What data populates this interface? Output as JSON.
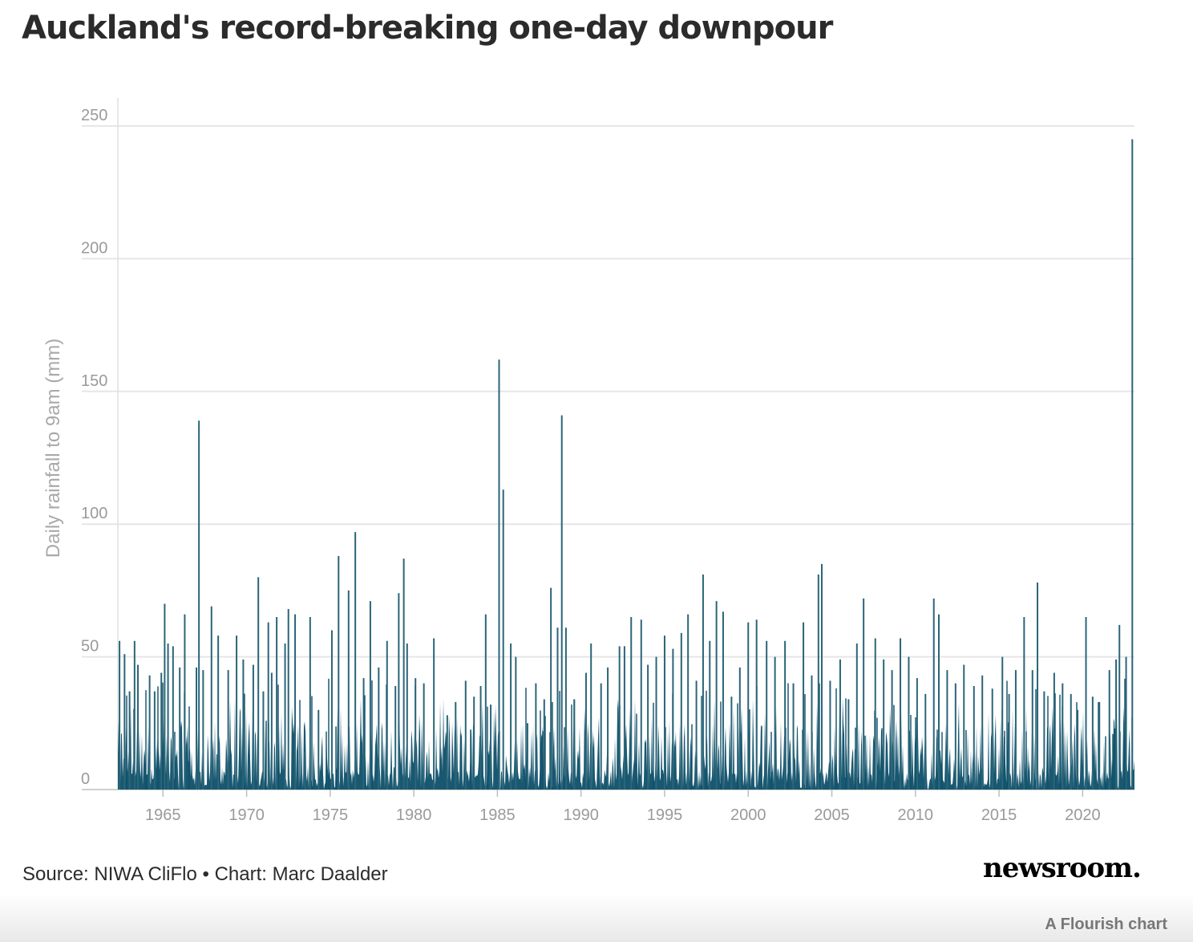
{
  "title": "Auckland's record-breaking one-day downpour",
  "source_text": "Source: NIWA CliFlo • Chart: Marc Daalder",
  "brand": "newsroom.",
  "credit": "A Flourish chart",
  "chart_data": {
    "type": "area",
    "ylabel": "Daily rainfall to 9am (mm)",
    "xlabel": "",
    "xlim": [
      1962.3,
      2023.1
    ],
    "ylim": [
      0,
      250
    ],
    "y_ticks": [
      "0",
      "50",
      "100",
      "150",
      "200",
      "250"
    ],
    "x_ticks": [
      "1965",
      "1970",
      "1975",
      "1980",
      "1985",
      "1990",
      "1995",
      "2000",
      "2005",
      "2010",
      "2015",
      "2020"
    ],
    "grid": true,
    "color": "#0d4f69",
    "peaks": [
      {
        "x": 1962.4,
        "y": 56
      },
      {
        "x": 1962.7,
        "y": 51
      },
      {
        "x": 1963.0,
        "y": 37
      },
      {
        "x": 1963.3,
        "y": 56
      },
      {
        "x": 1963.5,
        "y": 47
      },
      {
        "x": 1964.2,
        "y": 43
      },
      {
        "x": 1964.5,
        "y": 37
      },
      {
        "x": 1964.9,
        "y": 44
      },
      {
        "x": 1965.1,
        "y": 70
      },
      {
        "x": 1965.3,
        "y": 55
      },
      {
        "x": 1965.6,
        "y": 54
      },
      {
        "x": 1966.0,
        "y": 46
      },
      {
        "x": 1966.3,
        "y": 66
      },
      {
        "x": 1967.0,
        "y": 46
      },
      {
        "x": 1967.15,
        "y": 139
      },
      {
        "x": 1967.4,
        "y": 45
      },
      {
        "x": 1967.9,
        "y": 69
      },
      {
        "x": 1968.3,
        "y": 58
      },
      {
        "x": 1968.9,
        "y": 45
      },
      {
        "x": 1969.4,
        "y": 58
      },
      {
        "x": 1969.8,
        "y": 49
      },
      {
        "x": 1970.4,
        "y": 47
      },
      {
        "x": 1970.7,
        "y": 80
      },
      {
        "x": 1971.0,
        "y": 37
      },
      {
        "x": 1971.3,
        "y": 63
      },
      {
        "x": 1971.5,
        "y": 44
      },
      {
        "x": 1971.8,
        "y": 65
      },
      {
        "x": 1972.3,
        "y": 55
      },
      {
        "x": 1972.5,
        "y": 68
      },
      {
        "x": 1972.9,
        "y": 66
      },
      {
        "x": 1973.5,
        "y": 14
      },
      {
        "x": 1973.8,
        "y": 65
      },
      {
        "x": 1974.3,
        "y": 30
      },
      {
        "x": 1975.1,
        "y": 60
      },
      {
        "x": 1975.5,
        "y": 88
      },
      {
        "x": 1976.1,
        "y": 75
      },
      {
        "x": 1976.5,
        "y": 97
      },
      {
        "x": 1977.0,
        "y": 42
      },
      {
        "x": 1977.4,
        "y": 71
      },
      {
        "x": 1977.9,
        "y": 46
      },
      {
        "x": 1978.4,
        "y": 56
      },
      {
        "x": 1978.9,
        "y": 39
      },
      {
        "x": 1979.1,
        "y": 74
      },
      {
        "x": 1979.4,
        "y": 87
      },
      {
        "x": 1979.6,
        "y": 55
      },
      {
        "x": 1980.1,
        "y": 42
      },
      {
        "x": 1980.6,
        "y": 40
      },
      {
        "x": 1981.2,
        "y": 57
      },
      {
        "x": 1982.0,
        "y": 28
      },
      {
        "x": 1982.5,
        "y": 33
      },
      {
        "x": 1983.1,
        "y": 41
      },
      {
        "x": 1983.6,
        "y": 35
      },
      {
        "x": 1984.0,
        "y": 39
      },
      {
        "x": 1984.3,
        "y": 66
      },
      {
        "x": 1984.6,
        "y": 32
      },
      {
        "x": 1985.1,
        "y": 162
      },
      {
        "x": 1985.35,
        "y": 113
      },
      {
        "x": 1985.8,
        "y": 55
      },
      {
        "x": 1986.1,
        "y": 50
      },
      {
        "x": 1986.8,
        "y": 25
      },
      {
        "x": 1987.3,
        "y": 40
      },
      {
        "x": 1987.8,
        "y": 34
      },
      {
        "x": 1988.2,
        "y": 76
      },
      {
        "x": 1988.6,
        "y": 61
      },
      {
        "x": 1988.85,
        "y": 141
      },
      {
        "x": 1989.1,
        "y": 61
      },
      {
        "x": 1989.6,
        "y": 34
      },
      {
        "x": 1990.3,
        "y": 44
      },
      {
        "x": 1990.6,
        "y": 55
      },
      {
        "x": 1991.2,
        "y": 40
      },
      {
        "x": 1991.6,
        "y": 46
      },
      {
        "x": 1992.3,
        "y": 54
      },
      {
        "x": 1992.6,
        "y": 54
      },
      {
        "x": 1993.0,
        "y": 65
      },
      {
        "x": 1993.6,
        "y": 64
      },
      {
        "x": 1994.0,
        "y": 47
      },
      {
        "x": 1994.5,
        "y": 50
      },
      {
        "x": 1995.0,
        "y": 58
      },
      {
        "x": 1995.5,
        "y": 53
      },
      {
        "x": 1996.0,
        "y": 59
      },
      {
        "x": 1996.4,
        "y": 66
      },
      {
        "x": 1996.9,
        "y": 41
      },
      {
        "x": 1997.3,
        "y": 81
      },
      {
        "x": 1997.7,
        "y": 56
      },
      {
        "x": 1998.1,
        "y": 71
      },
      {
        "x": 1998.5,
        "y": 67
      },
      {
        "x": 1999.0,
        "y": 35
      },
      {
        "x": 1999.5,
        "y": 46
      },
      {
        "x": 2000.0,
        "y": 63
      },
      {
        "x": 2000.5,
        "y": 64
      },
      {
        "x": 2001.1,
        "y": 56
      },
      {
        "x": 2001.6,
        "y": 50
      },
      {
        "x": 2002.2,
        "y": 56
      },
      {
        "x": 2002.7,
        "y": 40
      },
      {
        "x": 2003.3,
        "y": 63
      },
      {
        "x": 2003.8,
        "y": 43
      },
      {
        "x": 2004.2,
        "y": 81
      },
      {
        "x": 2004.4,
        "y": 85
      },
      {
        "x": 2004.9,
        "y": 41
      },
      {
        "x": 2005.5,
        "y": 49
      },
      {
        "x": 2006.0,
        "y": 34
      },
      {
        "x": 2006.5,
        "y": 55
      },
      {
        "x": 2006.9,
        "y": 72
      },
      {
        "x": 2007.6,
        "y": 57
      },
      {
        "x": 2008.1,
        "y": 49
      },
      {
        "x": 2008.6,
        "y": 45
      },
      {
        "x": 2009.1,
        "y": 57
      },
      {
        "x": 2009.6,
        "y": 50
      },
      {
        "x": 2010.1,
        "y": 42
      },
      {
        "x": 2010.6,
        "y": 36
      },
      {
        "x": 2011.1,
        "y": 72
      },
      {
        "x": 2011.4,
        "y": 66
      },
      {
        "x": 2011.9,
        "y": 45
      },
      {
        "x": 2012.4,
        "y": 40
      },
      {
        "x": 2012.9,
        "y": 47
      },
      {
        "x": 2013.5,
        "y": 39
      },
      {
        "x": 2014.0,
        "y": 43
      },
      {
        "x": 2014.6,
        "y": 38
      },
      {
        "x": 2015.2,
        "y": 50
      },
      {
        "x": 2015.6,
        "y": 36
      },
      {
        "x": 2016.0,
        "y": 45
      },
      {
        "x": 2016.5,
        "y": 65
      },
      {
        "x": 2017.0,
        "y": 45
      },
      {
        "x": 2017.3,
        "y": 78
      },
      {
        "x": 2017.7,
        "y": 37
      },
      {
        "x": 2018.3,
        "y": 44
      },
      {
        "x": 2018.8,
        "y": 40
      },
      {
        "x": 2019.3,
        "y": 36
      },
      {
        "x": 2019.7,
        "y": 30
      },
      {
        "x": 2020.2,
        "y": 65
      },
      {
        "x": 2020.6,
        "y": 35
      },
      {
        "x": 2021.0,
        "y": 33
      },
      {
        "x": 2021.6,
        "y": 45
      },
      {
        "x": 2022.0,
        "y": 49
      },
      {
        "x": 2022.2,
        "y": 62
      },
      {
        "x": 2022.6,
        "y": 50
      },
      {
        "x": 2022.97,
        "y": 245
      }
    ]
  }
}
